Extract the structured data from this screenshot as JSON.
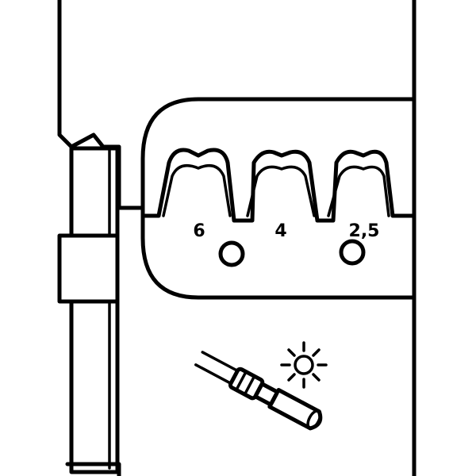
{
  "colors": {
    "ink": "#000000",
    "background": "#ffffff"
  },
  "die": {
    "cavities": [
      {
        "label": "6"
      },
      {
        "label": "4"
      },
      {
        "label": "2,5"
      }
    ]
  },
  "icons": [
    "sun-icon",
    "crimped-connector-icon"
  ]
}
